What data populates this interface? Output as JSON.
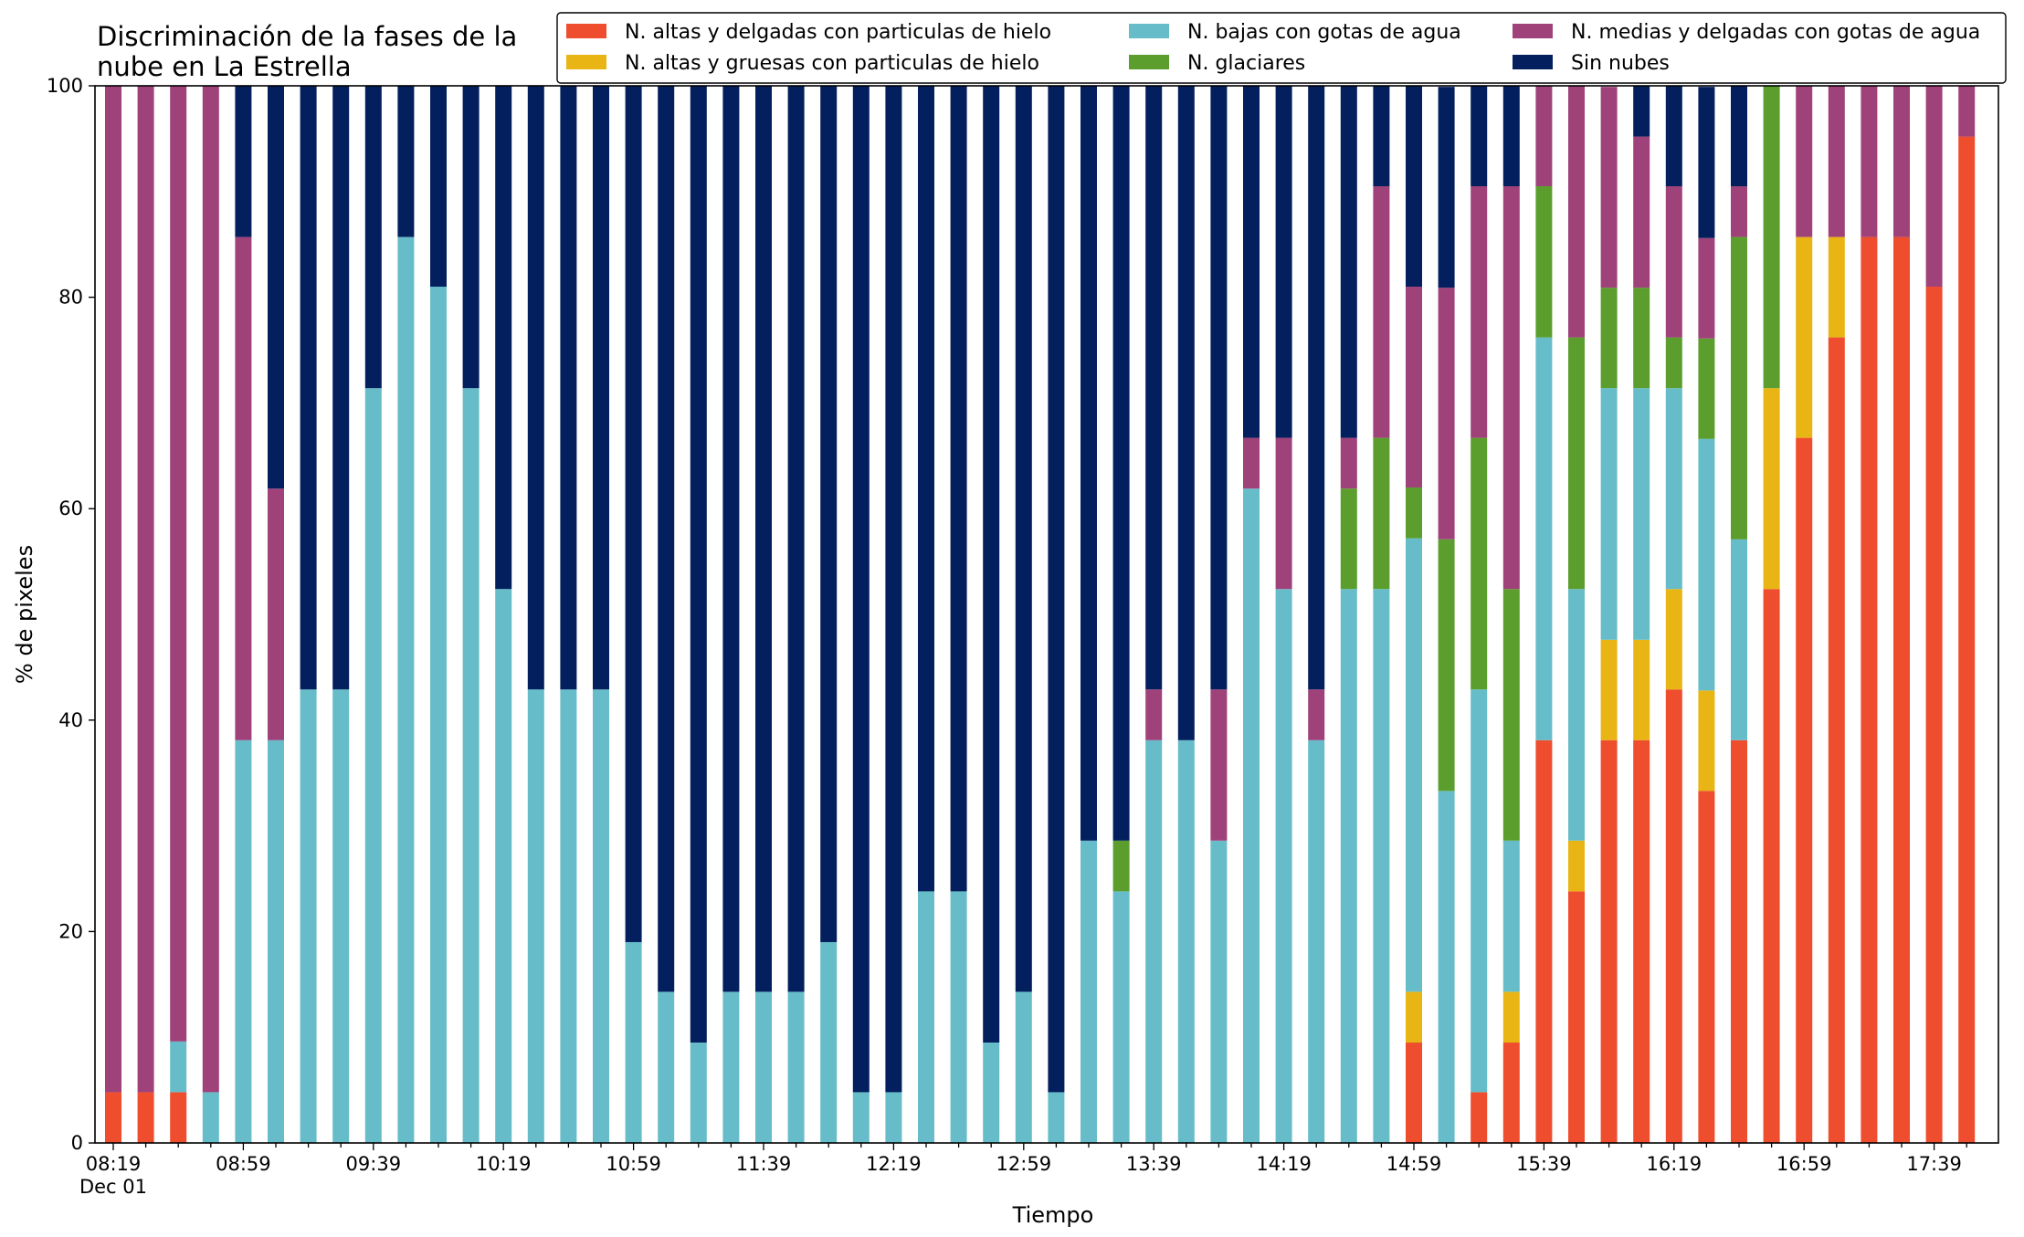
{
  "chart_data": {
    "type": "bar",
    "stacked": true,
    "title_lines": [
      "Discriminación de la fases de la",
      "nube en La Estrella"
    ],
    "xlabel": "Tiempo",
    "ylabel": "% de pixeles",
    "ylim": [
      0,
      100
    ],
    "yticks": [
      0,
      20,
      40,
      60,
      80,
      100
    ],
    "x_tick_labels": [
      "08:19",
      "08:59",
      "09:39",
      "10:19",
      "10:59",
      "11:39",
      "12:19",
      "12:59",
      "13:39",
      "14:19",
      "14:59",
      "15:39",
      "16:19",
      "16:59",
      "17:39"
    ],
    "x_date_label": "Dec 01",
    "bar_interval_minutes": 10,
    "legend_position": "top-right",
    "grid": false,
    "times": [
      "08:19",
      "08:29",
      "08:39",
      "08:49",
      "08:59",
      "09:09",
      "09:19",
      "09:29",
      "09:39",
      "09:49",
      "09:59",
      "10:09",
      "10:19",
      "10:29",
      "10:39",
      "10:49",
      "10:59",
      "11:09",
      "11:19",
      "11:29",
      "11:39",
      "11:49",
      "11:59",
      "12:09",
      "12:19",
      "12:29",
      "12:39",
      "12:49",
      "12:59",
      "13:09",
      "13:19",
      "13:29",
      "13:39",
      "13:49",
      "13:59",
      "14:09",
      "14:19",
      "14:29",
      "14:39",
      "14:49",
      "14:59",
      "15:09",
      "15:19",
      "15:29",
      "15:39",
      "15:49",
      "15:59",
      "16:09",
      "16:19",
      "16:29",
      "16:39",
      "16:49",
      "16:59",
      "17:09",
      "17:19",
      "17:29",
      "17:39",
      "17:49"
    ],
    "series": [
      {
        "name": "N. altas y delgadas con particulas de hielo",
        "color": "#ee4d2e",
        "values": [
          4.8,
          4.8,
          4.8,
          0,
          0,
          0,
          0,
          0,
          0,
          0,
          0,
          0,
          0,
          0,
          0,
          0,
          0,
          0,
          0,
          0,
          0,
          0,
          0,
          0,
          0,
          0,
          0,
          0,
          0,
          0,
          0,
          0,
          0,
          0,
          0,
          0,
          0,
          0,
          0,
          0,
          9.5,
          0,
          4.8,
          9.5,
          38.1,
          23.8,
          38.1,
          38.1,
          42.9,
          33.3,
          38.1,
          52.4,
          66.7,
          76.2,
          85.7,
          85.7,
          81,
          95.2
        ]
      },
      {
        "name": "N. altas y gruesas con particulas de hielo",
        "color": "#e8b515",
        "values": [
          0,
          0,
          0,
          0,
          0,
          0,
          0,
          0,
          0,
          0,
          0,
          0,
          0,
          0,
          0,
          0,
          0,
          0,
          0,
          0,
          0,
          0,
          0,
          0,
          0,
          0,
          0,
          0,
          0,
          0,
          0,
          0,
          0,
          0,
          0,
          0,
          0,
          0,
          0,
          0,
          4.8,
          0,
          0,
          4.8,
          0,
          4.8,
          9.5,
          9.5,
          9.5,
          9.5,
          0,
          19,
          19,
          9.5,
          0,
          0,
          0,
          0
        ]
      },
      {
        "name": "N. bajas con gotas de agua",
        "color": "#66bdc9",
        "values": [
          0,
          0,
          4.8,
          4.8,
          38.1,
          38.1,
          42.9,
          42.9,
          71.4,
          85.7,
          81,
          71.4,
          52.4,
          42.9,
          42.9,
          42.9,
          19,
          14.3,
          9.5,
          14.3,
          14.3,
          14.3,
          19,
          4.8,
          4.8,
          23.8,
          23.8,
          9.5,
          14.3,
          4.8,
          28.6,
          23.8,
          38.1,
          38.1,
          28.6,
          61.9,
          52.4,
          38.1,
          52.4,
          52.4,
          42.9,
          33.3,
          38.1,
          14.3,
          38.1,
          23.8,
          23.8,
          23.8,
          19,
          23.8,
          19,
          0,
          0,
          0,
          0,
          0,
          0,
          0
        ]
      },
      {
        "name": "N. glaciares",
        "color": "#5b9e2d",
        "values": [
          0,
          0,
          0,
          0,
          0,
          0,
          0,
          0,
          0,
          0,
          0,
          0,
          0,
          0,
          0,
          0,
          0,
          0,
          0,
          0,
          0,
          0,
          0,
          0,
          0,
          0,
          0,
          0,
          0,
          0,
          0,
          4.8,
          0,
          0,
          0,
          0,
          0,
          0,
          9.5,
          14.3,
          4.8,
          23.8,
          23.8,
          23.8,
          14.3,
          23.8,
          9.5,
          9.5,
          4.8,
          9.5,
          28.6,
          28.6,
          0,
          0,
          0,
          0,
          0,
          0
        ]
      },
      {
        "name": "N. medias y delgadas con gotas de agua",
        "color": "#a0427a",
        "values": [
          95.2,
          95.2,
          90.4,
          95.2,
          47.6,
          23.8,
          0,
          0,
          0,
          0,
          0,
          0,
          0,
          0,
          0,
          0,
          0,
          0,
          0,
          0,
          0,
          0,
          0,
          0,
          0,
          0,
          0,
          0,
          0,
          0,
          0,
          0,
          4.8,
          0,
          14.3,
          4.8,
          14.3,
          4.8,
          4.8,
          23.8,
          19,
          23.8,
          23.8,
          38.1,
          9.5,
          23.8,
          19,
          14.3,
          14.3,
          9.5,
          4.8,
          0,
          14.3,
          14.3,
          14.3,
          14.3,
          19,
          4.8
        ]
      },
      {
        "name": "Sin nubes",
        "color": "#031f5e",
        "values": [
          0,
          0,
          0,
          0,
          14.3,
          38.1,
          57.1,
          57.1,
          28.6,
          14.3,
          19,
          28.6,
          47.6,
          57.1,
          57.1,
          57.1,
          81,
          85.7,
          90.5,
          85.7,
          85.7,
          85.7,
          81,
          95.2,
          95.2,
          76.2,
          76.2,
          90.5,
          85.7,
          95.2,
          71.4,
          71.4,
          57.1,
          61.9,
          57.1,
          33.3,
          33.3,
          57.1,
          33.3,
          9.5,
          19,
          19,
          9.5,
          9.5,
          0,
          0,
          0,
          4.8,
          9.5,
          14.3,
          9.5,
          0,
          0,
          0,
          0,
          0,
          0,
          0
        ]
      }
    ]
  }
}
